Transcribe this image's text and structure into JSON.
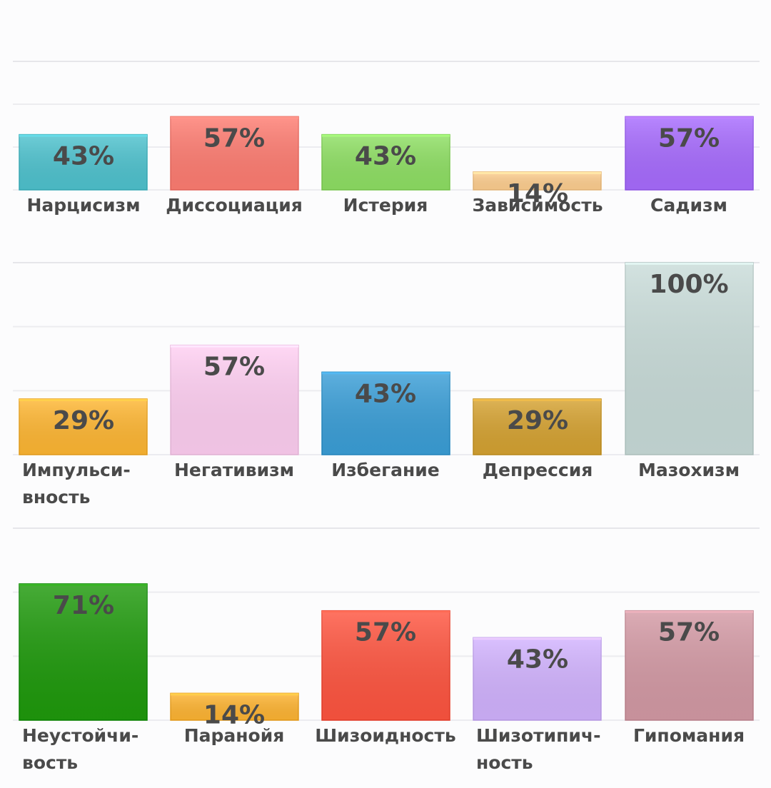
{
  "chart_data": [
    {
      "type": "bar",
      "categories": [
        "Нарцисизм",
        "Диссоциация",
        "Истерия",
        "Зависимость",
        "Садизм"
      ],
      "values": [
        43,
        57,
        43,
        14,
        57
      ],
      "value_labels": [
        "43%",
        "57%",
        "43%",
        "14%",
        "57%"
      ],
      "colors": [
        "#4fc3cf",
        "#ff7d72",
        "#8fe064",
        "#ffcf90",
        "#a86cff"
      ],
      "ylim": [
        0,
        100
      ],
      "grid": true,
      "title": "",
      "xlabel": "",
      "ylabel": ""
    },
    {
      "type": "bar",
      "categories": [
        "Импульси-\nвность",
        "Негативизм",
        "Избегание",
        "Депрессия",
        "Мазохизм"
      ],
      "values": [
        29,
        57,
        43,
        29,
        100
      ],
      "value_labels": [
        "29%",
        "57%",
        "43%",
        "29%",
        "100%"
      ],
      "colors": [
        "#ffb733",
        "#ffcff2",
        "#3b9fd8",
        "#d6a332",
        "#c9dcd9"
      ],
      "ylim": [
        0,
        100
      ],
      "grid": true,
      "title": "",
      "xlabel": "",
      "ylabel": ""
    },
    {
      "type": "bar",
      "categories": [
        "Неустойчи-\nвость",
        "Паранойя",
        "Шизоидность",
        "Шизотипич-\nность",
        "Гипомания"
      ],
      "values": [
        71,
        14,
        57,
        43,
        57
      ],
      "value_labels": [
        "71%",
        "14%",
        "57%",
        "43%",
        "57%"
      ],
      "colors": [
        "#1f9a0c",
        "#ffb533",
        "#ff5540",
        "#d2b3ff",
        "#d49aa5"
      ],
      "ylim": [
        0,
        100
      ],
      "grid": true,
      "title": "",
      "xlabel": "",
      "ylabel": ""
    }
  ]
}
